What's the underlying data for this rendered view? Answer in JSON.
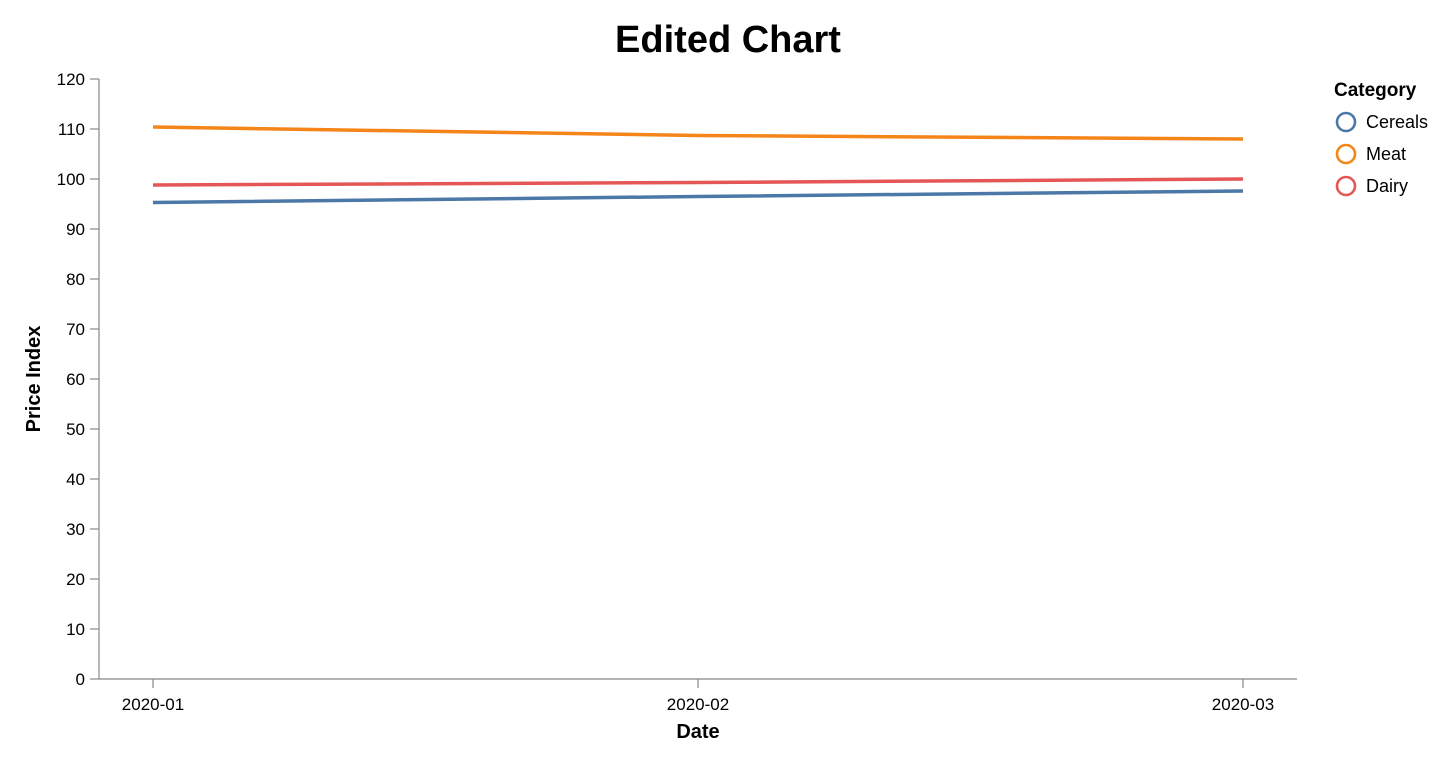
{
  "chart_data": {
    "type": "line",
    "title": "Edited Chart",
    "xlabel": "Date",
    "ylabel": "Price Index",
    "x": [
      "2020-01",
      "2020-02",
      "2020-03"
    ],
    "ylim": [
      0,
      120
    ],
    "yticks": [
      0,
      10,
      20,
      30,
      40,
      50,
      60,
      70,
      80,
      90,
      100,
      110,
      120
    ],
    "grid": false,
    "legend": {
      "title": "Category",
      "placement": "right"
    },
    "series": [
      {
        "name": "Cereals",
        "color": "#4c78a8",
        "values": [
          95.3,
          96.5,
          97.6
        ]
      },
      {
        "name": "Meat",
        "color": "#f58518",
        "values": [
          110.4,
          108.7,
          108.0
        ]
      },
      {
        "name": "Dairy",
        "color": "#e45756",
        "values": [
          98.8,
          99.3,
          100.0
        ]
      }
    ]
  }
}
